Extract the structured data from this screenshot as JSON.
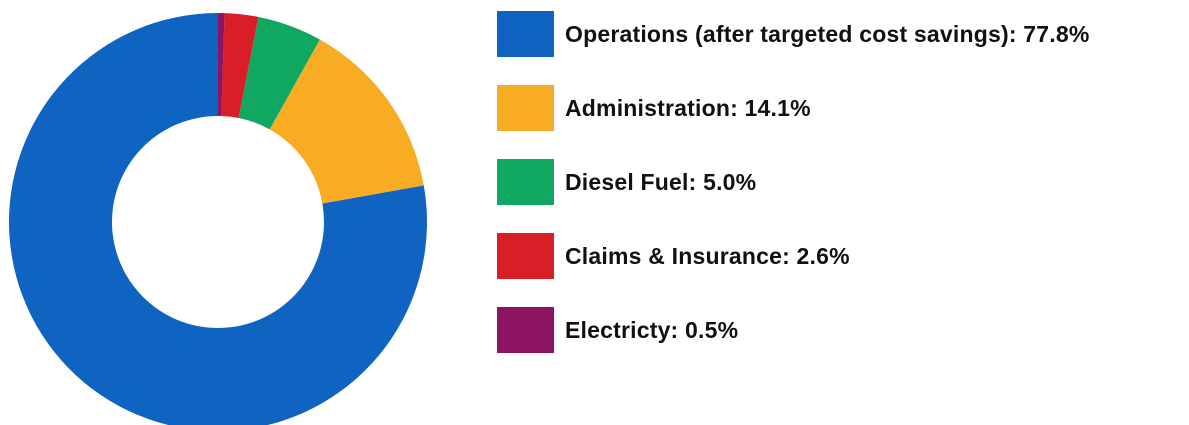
{
  "chart_data": {
    "type": "pie",
    "variant": "donut",
    "slices": [
      {
        "label": "Operations (after targeted cost savings): 77.8%",
        "value": 77.8,
        "color": "#0F63C1"
      },
      {
        "label": "Administration: 14.1%",
        "value": 14.1,
        "color": "#F8AC24"
      },
      {
        "label": "Diesel Fuel: 5.0%",
        "value": 5.0,
        "color": "#10A861"
      },
      {
        "label": "Claims & Insurance: 2.6%",
        "value": 2.6,
        "color": "#D81E27"
      },
      {
        "label": "Electricty: 0.5%",
        "value": 0.5,
        "color": "#8C1460"
      }
    ],
    "legend": "right",
    "title": "",
    "xlabel": "",
    "ylabel": ""
  }
}
